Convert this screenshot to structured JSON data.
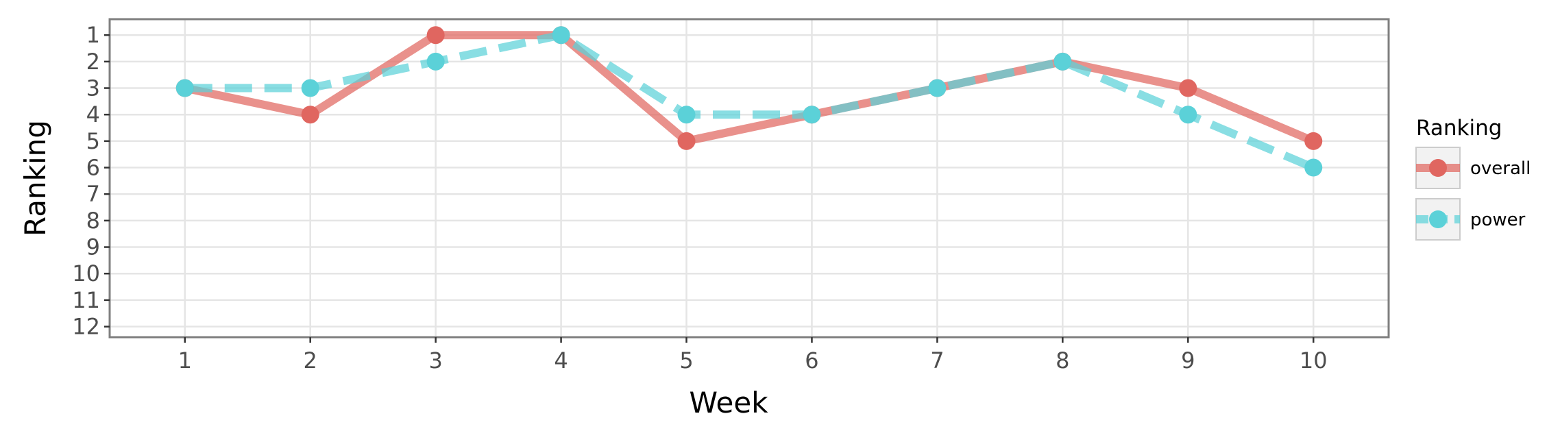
{
  "chart_data": {
    "type": "line",
    "title": "",
    "xlabel": "Week",
    "ylabel": "Ranking",
    "x": [
      1,
      2,
      3,
      4,
      5,
      6,
      7,
      8,
      9,
      10
    ],
    "xlim": [
      0.4,
      10.6
    ],
    "ylim": [
      12.4,
      0.4
    ],
    "y_reversed": true,
    "x_ticks": [
      1,
      2,
      3,
      4,
      5,
      6,
      7,
      8,
      9,
      10
    ],
    "y_ticks": [
      1,
      2,
      3,
      4,
      5,
      6,
      7,
      8,
      9,
      10,
      11,
      12
    ],
    "grid": true,
    "legend": {
      "title": "Ranking",
      "placement": "right"
    },
    "series": [
      {
        "name": "overall",
        "values": [
          3,
          4,
          1,
          1,
          5,
          4,
          3,
          2,
          3,
          5
        ],
        "color": "#e06660",
        "line_style": "solid",
        "marker": "circle"
      },
      {
        "name": "power",
        "values": [
          3,
          3,
          2,
          1,
          4,
          4,
          3,
          2,
          4,
          6
        ],
        "color": "#5bd1d8",
        "line_style": "dashed",
        "marker": "circle"
      }
    ]
  }
}
